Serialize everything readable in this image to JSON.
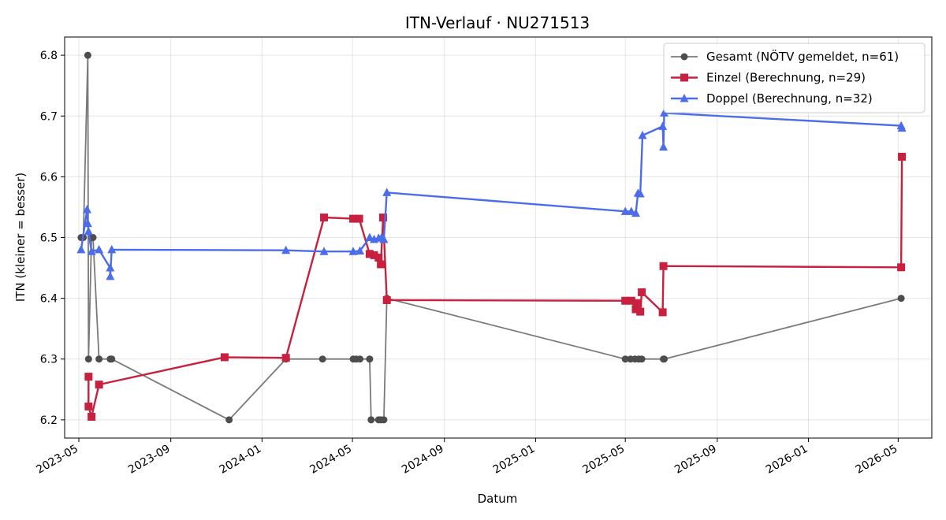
{
  "chart_data": {
    "type": "line",
    "title": "ITN-Verlauf · NU271513",
    "xlabel": "Datum",
    "ylabel": "ITN  (kleiner = besser)",
    "x_axis_type": "date",
    "xlim": [
      "2023-04-12",
      "2026-06-15"
    ],
    "ylim": [
      6.17,
      6.83
    ],
    "x_ticks": [
      "2023-05",
      "2023-09",
      "2024-01",
      "2024-05",
      "2024-09",
      "2025-01",
      "2025-05",
      "2025-09",
      "2026-01",
      "2026-05"
    ],
    "y_ticks": [
      "6.2",
      "6.3",
      "6.4",
      "6.5",
      "6.6",
      "6.7",
      "6.8"
    ],
    "grid": true,
    "legend_position": "top-right",
    "series": [
      {
        "name": "Gesamt (NÖTV gemeldet, n=61)",
        "color": "#4d4d4d",
        "marker": "circle",
        "points": [
          [
            "2023-05-04",
            6.5
          ],
          [
            "2023-05-07",
            6.5
          ],
          [
            "2023-05-13",
            6.8
          ],
          [
            "2023-05-14",
            6.3
          ],
          [
            "2023-05-18",
            6.5
          ],
          [
            "2023-05-20",
            6.5
          ],
          [
            "2023-05-28",
            6.3
          ],
          [
            "2023-06-12",
            6.3
          ],
          [
            "2023-06-14",
            6.3
          ],
          [
            "2023-11-18",
            6.2
          ],
          [
            "2024-02-02",
            6.3
          ],
          [
            "2024-03-22",
            6.3
          ],
          [
            "2024-05-02",
            6.3
          ],
          [
            "2024-05-06",
            6.3
          ],
          [
            "2024-05-11",
            6.3
          ],
          [
            "2024-05-24",
            6.3
          ],
          [
            "2024-05-26",
            6.2
          ],
          [
            "2024-06-05",
            6.2
          ],
          [
            "2024-06-08",
            6.2
          ],
          [
            "2024-06-12",
            6.2
          ],
          [
            "2024-06-16",
            6.4
          ],
          [
            "2025-05-01",
            6.3
          ],
          [
            "2025-05-08",
            6.3
          ],
          [
            "2025-05-14",
            6.3
          ],
          [
            "2025-05-19",
            6.3
          ],
          [
            "2025-05-23",
            6.3
          ],
          [
            "2025-06-21",
            6.3
          ],
          [
            "2025-06-22",
            6.3
          ],
          [
            "2026-05-05",
            6.4
          ]
        ]
      },
      {
        "name": "Einzel (Berechnung, n=29)",
        "color": "#c8203f",
        "marker": "square",
        "points": [
          [
            "2023-05-14",
            6.271
          ],
          [
            "2023-05-14",
            6.222
          ],
          [
            "2023-05-18",
            6.205
          ],
          [
            "2023-05-28",
            6.258
          ],
          [
            "2023-11-12",
            6.303
          ],
          [
            "2024-02-02",
            6.302
          ],
          [
            "2024-03-24",
            6.533
          ],
          [
            "2024-05-02",
            6.531
          ],
          [
            "2024-05-10",
            6.531
          ],
          [
            "2024-05-24",
            6.473
          ],
          [
            "2024-05-30",
            6.471
          ],
          [
            "2024-06-05",
            6.467
          ],
          [
            "2024-06-08",
            6.456
          ],
          [
            "2024-06-11",
            6.533
          ],
          [
            "2024-06-16",
            6.397
          ],
          [
            "2025-05-01",
            6.396
          ],
          [
            "2025-05-09",
            6.396
          ],
          [
            "2025-05-15",
            6.382
          ],
          [
            "2025-05-18",
            6.392
          ],
          [
            "2025-05-21",
            6.378
          ],
          [
            "2025-05-23",
            6.41
          ],
          [
            "2025-06-20",
            6.377
          ],
          [
            "2025-06-21",
            6.453
          ],
          [
            "2026-05-05",
            6.451
          ],
          [
            "2026-05-06",
            6.633
          ]
        ]
      },
      {
        "name": "Doppel (Berechnung, n=32)",
        "color": "#4c6ce9",
        "marker": "triangle",
        "points": [
          [
            "2023-05-04",
            6.48
          ],
          [
            "2023-05-12",
            6.546
          ],
          [
            "2023-05-13",
            6.523
          ],
          [
            "2023-05-14",
            6.51
          ],
          [
            "2023-05-18",
            6.477
          ],
          [
            "2023-05-28",
            6.48
          ],
          [
            "2023-06-12",
            6.45
          ],
          [
            "2023-06-12",
            6.436
          ],
          [
            "2023-06-14",
            6.48
          ],
          [
            "2024-02-02",
            6.479
          ],
          [
            "2024-03-24",
            6.477
          ],
          [
            "2024-05-02",
            6.477
          ],
          [
            "2024-05-11",
            6.478
          ],
          [
            "2024-05-24",
            6.5
          ],
          [
            "2024-05-30",
            6.497
          ],
          [
            "2024-06-05",
            6.499
          ],
          [
            "2024-06-09",
            6.5
          ],
          [
            "2024-06-12",
            6.497
          ],
          [
            "2024-06-16",
            6.574
          ],
          [
            "2025-05-01",
            6.543
          ],
          [
            "2025-05-09",
            6.543
          ],
          [
            "2025-05-15",
            6.54
          ],
          [
            "2025-05-18",
            6.573
          ],
          [
            "2025-05-21",
            6.572
          ],
          [
            "2025-05-24",
            6.668
          ],
          [
            "2025-06-20",
            6.683
          ],
          [
            "2025-06-21",
            6.649
          ],
          [
            "2025-06-22",
            6.705
          ],
          [
            "2026-05-05",
            6.684
          ],
          [
            "2026-05-06",
            6.68
          ]
        ]
      }
    ]
  }
}
